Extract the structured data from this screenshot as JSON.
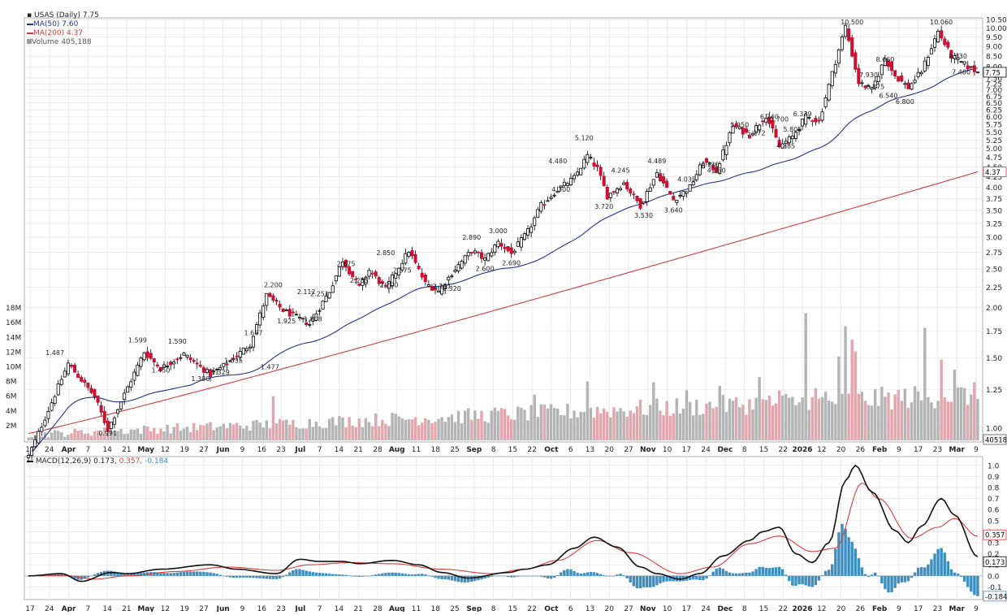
{
  "header": {
    "title": "USAS (Daily) 7.75",
    "ma50": "MA(50) 7.60",
    "ma200": "MA(200) 4.37",
    "volume": "Volume 405,188",
    "macd_prefix": "MACD(12,26,9)",
    "macd_v1": "0.173,",
    "macd_v2": "0.357,",
    "macd_v3": "-0.184"
  },
  "colors": {
    "up": "#000000",
    "down": "#cc1133",
    "ma50": "#22338f",
    "ma200": "#d23a3a",
    "vol_up": "#b4b4b4",
    "vol_down": "#e3a6ac",
    "macd": "#111111",
    "signal": "#e03a3a",
    "hist": "#3d8fc0",
    "grid": "#e3e3e3"
  },
  "chart_data": [
    {
      "type": "candlestick",
      "title": "USAS (Daily) 7.75",
      "scale": "log",
      "ylim": [
        0.95,
        10.5
      ],
      "y_ticks": [
        "10.50",
        "10.00",
        "9.50",
        "9.00",
        "8.50",
        "8.00",
        "7.50",
        "7.25",
        "7.00",
        "6.75",
        "6.50",
        "6.25",
        "6.00",
        "5.75",
        "5.50",
        "5.25",
        "5.00",
        "4.75",
        "4.50",
        "4.25",
        "4.00",
        "3.75",
        "3.50",
        "3.25",
        "3.00",
        "2.75",
        "2.50",
        "2.25",
        "2.00",
        "1.75",
        "1.50",
        "1.25",
        "1.00"
      ],
      "x_ticks": [
        "17",
        "24",
        "Apr",
        "7",
        "14",
        "21",
        "May",
        "12",
        "19",
        "27",
        "Jun",
        "9",
        "16",
        "23",
        "Jul",
        "7",
        "14",
        "21",
        "28",
        "Aug",
        "11",
        "18",
        "25",
        "Sep",
        "8",
        "15",
        "22",
        "Oct",
        "6",
        "13",
        "20",
        "27",
        "Nov",
        "10",
        "17",
        "24",
        "Dec",
        "8",
        "15",
        "22",
        "2026",
        "12",
        "20",
        "26",
        "Feb",
        "9",
        "17",
        "23",
        "Mar",
        "9"
      ],
      "last_price_tag": "7.75",
      "ma200_tag": "4.37",
      "volume_tag": "405188",
      "annotations": [
        "1.487",
        "0.991",
        "1.599",
        "1.450",
        "1.590",
        "1.380",
        "1.329",
        "1.535",
        "1.667",
        "1.477",
        "2.200",
        "1.925",
        "2.112",
        "2.251",
        "1.808",
        "2.675",
        "2.255",
        "2.850",
        "2.200",
        "2.575",
        "2.181",
        "2.320",
        "2.890",
        "2.600",
        "3.000",
        "2.690",
        "4.480",
        "4.100",
        "5.120",
        "3.720",
        "4.245",
        "3.530",
        "4.489",
        "3.640",
        "4.035",
        "4.730",
        "4.250",
        "5.950",
        "5.272",
        "6.240",
        "5.700",
        "5.805",
        "4.885",
        "6.339",
        "10.500",
        "7.930",
        "6.875",
        "8.660",
        "6.540",
        "6.800",
        "10.060",
        "8.830",
        "7.480"
      ],
      "anchors": [
        {
          "i": 0,
          "p": 0.85
        },
        {
          "i": 12,
          "p": 1.45
        },
        {
          "i": 20,
          "p": 1.2
        },
        {
          "i": 24,
          "p": 0.991
        },
        {
          "i": 35,
          "p": 1.55
        },
        {
          "i": 40,
          "p": 1.41
        },
        {
          "i": 47,
          "p": 1.53
        },
        {
          "i": 55,
          "p": 1.36
        },
        {
          "i": 60,
          "p": 1.45
        },
        {
          "i": 67,
          "p": 1.62
        },
        {
          "i": 72,
          "p": 2.15
        },
        {
          "i": 77,
          "p": 1.97
        },
        {
          "i": 85,
          "p": 1.82
        },
        {
          "i": 91,
          "p": 2.2
        },
        {
          "i": 95,
          "p": 2.63
        },
        {
          "i": 100,
          "p": 2.25
        },
        {
          "i": 103,
          "p": 2.48
        },
        {
          "i": 108,
          "p": 2.23
        },
        {
          "i": 115,
          "p": 2.78
        },
        {
          "i": 120,
          "p": 2.3
        },
        {
          "i": 124,
          "p": 2.2
        },
        {
          "i": 129,
          "p": 2.5
        },
        {
          "i": 134,
          "p": 2.78
        },
        {
          "i": 138,
          "p": 2.64
        },
        {
          "i": 142,
          "p": 2.92
        },
        {
          "i": 146,
          "p": 2.73
        },
        {
          "i": 151,
          "p": 3.1
        },
        {
          "i": 155,
          "p": 3.6
        },
        {
          "i": 160,
          "p": 3.95
        },
        {
          "i": 165,
          "p": 4.22
        },
        {
          "i": 169,
          "p": 4.8
        },
        {
          "i": 172,
          "p": 4.45
        },
        {
          "i": 175,
          "p": 3.8
        },
        {
          "i": 180,
          "p": 4.1
        },
        {
          "i": 185,
          "p": 3.6
        },
        {
          "i": 190,
          "p": 4.35
        },
        {
          "i": 195,
          "p": 3.72
        },
        {
          "i": 200,
          "p": 4.0
        },
        {
          "i": 204,
          "p": 4.65
        },
        {
          "i": 208,
          "p": 4.4
        },
        {
          "i": 213,
          "p": 5.7
        },
        {
          "i": 218,
          "p": 5.4
        },
        {
          "i": 223,
          "p": 6.05
        },
        {
          "i": 227,
          "p": 5.05
        },
        {
          "i": 231,
          "p": 5.35
        },
        {
          "i": 235,
          "p": 6.0
        },
        {
          "i": 239,
          "p": 5.85
        },
        {
          "i": 243,
          "p": 7.7
        },
        {
          "i": 247,
          "p": 10.1
        },
        {
          "i": 251,
          "p": 7.3
        },
        {
          "i": 255,
          "p": 7.0
        },
        {
          "i": 259,
          "p": 8.4
        },
        {
          "i": 262,
          "p": 7.6
        },
        {
          "i": 266,
          "p": 7.1
        },
        {
          "i": 270,
          "p": 7.8
        },
        {
          "i": 275,
          "p": 9.8
        },
        {
          "i": 279,
          "p": 8.5
        },
        {
          "i": 283,
          "p": 8.1
        },
        {
          "i": 287,
          "p": 7.75
        }
      ],
      "volume_scale_ticks": [
        "18M",
        "16M",
        "14M",
        "12M",
        "10M",
        "8M",
        "6M",
        "4M",
        "2M"
      ],
      "volume_max_m": 19,
      "volume_spikes_m": [
        {
          "i": 74,
          "v": 6
        },
        {
          "i": 142,
          "v": 4
        },
        {
          "i": 153,
          "v": 6.2
        },
        {
          "i": 169,
          "v": 8
        },
        {
          "i": 189,
          "v": 7.9
        },
        {
          "i": 199,
          "v": 6.8
        },
        {
          "i": 209,
          "v": 7.4
        },
        {
          "i": 221,
          "v": 8.6
        },
        {
          "i": 227,
          "v": 6.8
        },
        {
          "i": 235,
          "v": 17.3
        },
        {
          "i": 238,
          "v": 7.1
        },
        {
          "i": 241,
          "v": 6.6
        },
        {
          "i": 245,
          "v": 11.4
        },
        {
          "i": 247,
          "v": 15.5
        },
        {
          "i": 249,
          "v": 13.7
        },
        {
          "i": 250,
          "v": 12.1
        },
        {
          "i": 271,
          "v": 15.3
        },
        {
          "i": 276,
          "v": 11.0
        },
        {
          "i": 280,
          "v": 9.6
        }
      ]
    },
    {
      "type": "line",
      "title": "MACD(12,26,9) 0.173, 0.357, -0.184",
      "ylim": [
        -0.2,
        1.05
      ],
      "y_ticks": [
        "1.0",
        "0.9",
        "0.8",
        "0.7",
        "0.6",
        "0.5",
        "0.4",
        "0.3",
        "0.2",
        "0.1",
        "0.0",
        "-0.1"
      ],
      "value_tags": [
        "0.357",
        "0.173",
        "-0.184"
      ],
      "x_ticks": [
        "17",
        "24",
        "Apr",
        "7",
        "14",
        "21",
        "May",
        "12",
        "19",
        "27",
        "Jun",
        "9",
        "16",
        "23",
        "Jul",
        "7",
        "14",
        "21",
        "28",
        "Aug",
        "11",
        "18",
        "25",
        "Sep",
        "8",
        "15",
        "22",
        "Oct",
        "6",
        "13",
        "20",
        "27",
        "Nov",
        "10",
        "17",
        "24",
        "Dec",
        "8",
        "15",
        "22",
        "2026",
        "12",
        "20",
        "26",
        "Feb",
        "9",
        "17",
        "23",
        "Mar",
        "9"
      ],
      "series": [
        {
          "name": "MACD",
          "points": [
            [
              0,
              0.0
            ],
            [
              10,
              0.02
            ],
            [
              16,
              -0.05
            ],
            [
              25,
              0.03
            ],
            [
              30,
              0.02
            ],
            [
              40,
              0.06
            ],
            [
              55,
              0.1
            ],
            [
              63,
              0.06
            ],
            [
              75,
              0.02
            ],
            [
              82,
              0.15
            ],
            [
              88,
              0.13
            ],
            [
              95,
              0.13
            ],
            [
              100,
              0.11
            ],
            [
              110,
              0.14
            ],
            [
              118,
              0.1
            ],
            [
              125,
              0.03
            ],
            [
              133,
              -0.02
            ],
            [
              145,
              0.03
            ],
            [
              150,
              0.06
            ],
            [
              157,
              0.1
            ],
            [
              165,
              0.25
            ],
            [
              171,
              0.35
            ],
            [
              178,
              0.26
            ],
            [
              185,
              0.08
            ],
            [
              190,
              0.02
            ],
            [
              197,
              -0.03
            ],
            [
              203,
              0.02
            ],
            [
              210,
              0.18
            ],
            [
              218,
              0.32
            ],
            [
              222,
              0.4
            ],
            [
              227,
              0.44
            ],
            [
              232,
              0.2
            ],
            [
              237,
              0.12
            ],
            [
              242,
              0.3
            ],
            [
              247,
              0.86
            ],
            [
              250,
              1.0
            ],
            [
              255,
              0.76
            ],
            [
              262,
              0.41
            ],
            [
              266,
              0.3
            ],
            [
              270,
              0.45
            ],
            [
              276,
              0.7
            ],
            [
              280,
              0.55
            ],
            [
              287,
              0.173
            ]
          ]
        },
        {
          "name": "Signal",
          "points": [
            [
              0,
              0.0
            ],
            [
              12,
              0.0
            ],
            [
              20,
              -0.03
            ],
            [
              30,
              0.0
            ],
            [
              45,
              0.04
            ],
            [
              60,
              0.08
            ],
            [
              75,
              0.05
            ],
            [
              85,
              0.1
            ],
            [
              97,
              0.12
            ],
            [
              110,
              0.11
            ],
            [
              125,
              0.06
            ],
            [
              140,
              0.02
            ],
            [
              150,
              0.06
            ],
            [
              160,
              0.14
            ],
            [
              172,
              0.32
            ],
            [
              182,
              0.21
            ],
            [
              197,
              0.02
            ],
            [
              207,
              0.08
            ],
            [
              218,
              0.29
            ],
            [
              227,
              0.36
            ],
            [
              237,
              0.22
            ],
            [
              244,
              0.25
            ],
            [
              252,
              0.84
            ],
            [
              257,
              0.7
            ],
            [
              267,
              0.34
            ],
            [
              275,
              0.44
            ],
            [
              280,
              0.52
            ],
            [
              287,
              0.357
            ]
          ]
        }
      ]
    }
  ]
}
